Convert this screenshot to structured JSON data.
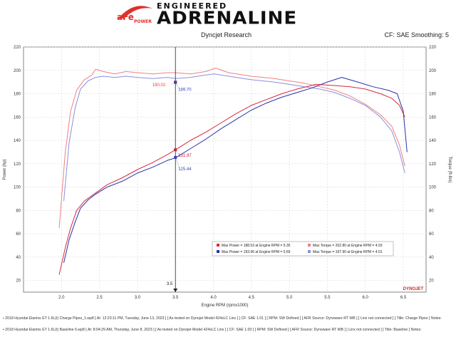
{
  "brand": {
    "afe_text": "aFe",
    "power_text": "POWER",
    "engineered": "ENGINEERED",
    "adrenaline": "ADRENALINE"
  },
  "header": {
    "left": "Dyncjet Research",
    "right": "CF: SAE Smoothing: 5"
  },
  "chart_data": {
    "type": "line",
    "xlabel": "Engine RPM (rpmx1000)",
    "ylabel_left": "Power (hp)",
    "ylabel_right": "Torque (ft-lbs)",
    "xlim": [
      1.5,
      6.8
    ],
    "ylim": [
      10,
      220
    ],
    "xticks": [
      2.0,
      2.5,
      3.0,
      3.5,
      4.0,
      4.5,
      5.0,
      5.5,
      6.0,
      6.5
    ],
    "xtick_labels": [
      "2.0",
      "2.5",
      "3.0",
      "3.5",
      "4.0",
      "4.5",
      "5.0",
      "5.5",
      "6.0",
      "6.5"
    ],
    "yticks": [
      20,
      40,
      60,
      80,
      100,
      120,
      140,
      160,
      180,
      200,
      220
    ],
    "ytick_labels": [
      "20",
      "40",
      "60",
      "80",
      "100",
      "120",
      "140",
      "160",
      "180",
      "200",
      "220"
    ],
    "grid": true,
    "cursor": {
      "x": 3.5,
      "label": "3.5"
    },
    "cursor_labels": [
      {
        "x": 3.5,
        "y": 190.02,
        "text": "190.02",
        "color": "#e8413c",
        "side": "left"
      },
      {
        "x": 3.5,
        "y": 189.7,
        "text": "189.70",
        "color": "#3a3fb8",
        "side": "right"
      },
      {
        "x": 3.5,
        "y": 131.97,
        "text": "131.97",
        "color": "#c3203a",
        "side": "right"
      },
      {
        "x": 3.5,
        "y": 125.44,
        "text": "125.44",
        "color": "#3a3fb8",
        "side": "right"
      }
    ],
    "series": [
      {
        "name": "Max Torque = 202.80 at Engine RPM = 4.03",
        "color": "#f08080",
        "x": [
          1.97,
          2.05,
          2.12,
          2.2,
          2.3,
          2.4,
          2.45,
          2.55,
          2.7,
          2.85,
          3.0,
          3.2,
          3.4,
          3.5,
          3.7,
          3.9,
          4.03,
          4.2,
          4.5,
          4.8,
          5.0,
          5.2,
          5.4,
          5.6,
          5.8,
          6.0,
          6.2,
          6.35,
          6.45,
          6.52
        ],
        "y": [
          65,
          130,
          165,
          183,
          192,
          196,
          201,
          199,
          197,
          199,
          198,
          197,
          198,
          198,
          197,
          199,
          202,
          198,
          195,
          193,
          191,
          189,
          186,
          183,
          178,
          171,
          162,
          152,
          136,
          118
        ]
      },
      {
        "name": "Max Torque = 197.90 at Engine RPM = 4.01",
        "color": "#8a8fe0",
        "x": [
          2.03,
          2.1,
          2.18,
          2.25,
          2.35,
          2.45,
          2.55,
          2.7,
          2.85,
          3.0,
          3.2,
          3.4,
          3.5,
          3.7,
          3.9,
          4.01,
          4.2,
          4.5,
          4.8,
          5.0,
          5.2,
          5.4,
          5.6,
          5.8,
          6.0,
          6.2,
          6.35,
          6.45,
          6.52
        ],
        "y": [
          88,
          138,
          168,
          184,
          191,
          194,
          195,
          194,
          195,
          194,
          193,
          194,
          193,
          194,
          196,
          197,
          195,
          192,
          190,
          188,
          186,
          184,
          181,
          176,
          170,
          160,
          148,
          130,
          112
        ]
      },
      {
        "name": "Max Power = 188.53 at Engine RPM = 5.35",
        "color": "#d42a40",
        "x": [
          1.97,
          2.05,
          2.12,
          2.2,
          2.3,
          2.45,
          2.6,
          2.8,
          3.0,
          3.2,
          3.4,
          3.5,
          3.7,
          3.9,
          4.1,
          4.3,
          4.5,
          4.7,
          4.9,
          5.1,
          5.35,
          5.6,
          5.8,
          6.0,
          6.2,
          6.35,
          6.45,
          6.52
        ],
        "y": [
          25,
          48,
          65,
          80,
          88,
          95,
          102,
          108,
          115,
          121,
          128,
          132,
          140,
          147,
          155,
          163,
          170,
          175,
          180,
          184,
          188,
          187,
          186,
          184,
          180,
          176,
          170,
          160
        ]
      },
      {
        "name": "Max Power = 193.96 at Engine RPM = 5.69",
        "color": "#2a32a8",
        "x": [
          2.03,
          2.1,
          2.18,
          2.25,
          2.35,
          2.45,
          2.6,
          2.8,
          3.0,
          3.2,
          3.4,
          3.5,
          3.7,
          3.9,
          4.1,
          4.3,
          4.5,
          4.7,
          4.9,
          5.1,
          5.3,
          5.5,
          5.69,
          5.9,
          6.1,
          6.3,
          6.42,
          6.5,
          6.55
        ],
        "y": [
          35,
          55,
          70,
          82,
          89,
          94,
          100,
          105,
          112,
          117,
          123,
          125,
          133,
          141,
          150,
          158,
          166,
          172,
          177,
          181,
          185,
          190,
          194,
          190,
          186,
          183,
          180,
          165,
          130
        ]
      }
    ],
    "legend": {
      "placement": "bottom-right",
      "entries": [
        {
          "text": "Max Power = 188.53 at Engine RPM = 5.35",
          "color": "#d42a40"
        },
        {
          "text": "Max Torque = 202.80 at Engine RPM = 4.03",
          "color": "#f08080"
        },
        {
          "text": "Max Power = 193.96 at Engine RPM = 5.69",
          "color": "#2a32a8"
        },
        {
          "text": "Max Torque = 197.90 at Engine RPM = 4.01",
          "color": "#8a8fe0"
        }
      ]
    },
    "watermark": "DYNOJET"
  },
  "footer": {
    "line1": "2018 Hyundai Elantra GT 1.6L(t) Charge Pipes_1.wp8 [ At: 12:23:11 PM, Tuesday, June 13, 2023 ] [ As tested on Dynojet Model 424xLC Linx ] [ CF: SAE 1.01 ] [ RPM: SW Defined ] [ AFR Source: Dynoware RT WB ] [ Linx not connected ] [ Title: Charge Pipes ] Notes:",
    "line2": "2018 Hyundai Elantra GT 1.6L(t) Baseline 6.wp8 [ At: 8:04:29 AM, Thursday, June 8, 2023 ] [ As tested on Dynojet Model 424xLC Linx ] [ CF: SAE 1.00 ] [ RPM: SW Defined ] [ AFR Source: Dynoware RT WB ] [ Linx not connected ] [ Title: Baseline ] Notes:"
  }
}
